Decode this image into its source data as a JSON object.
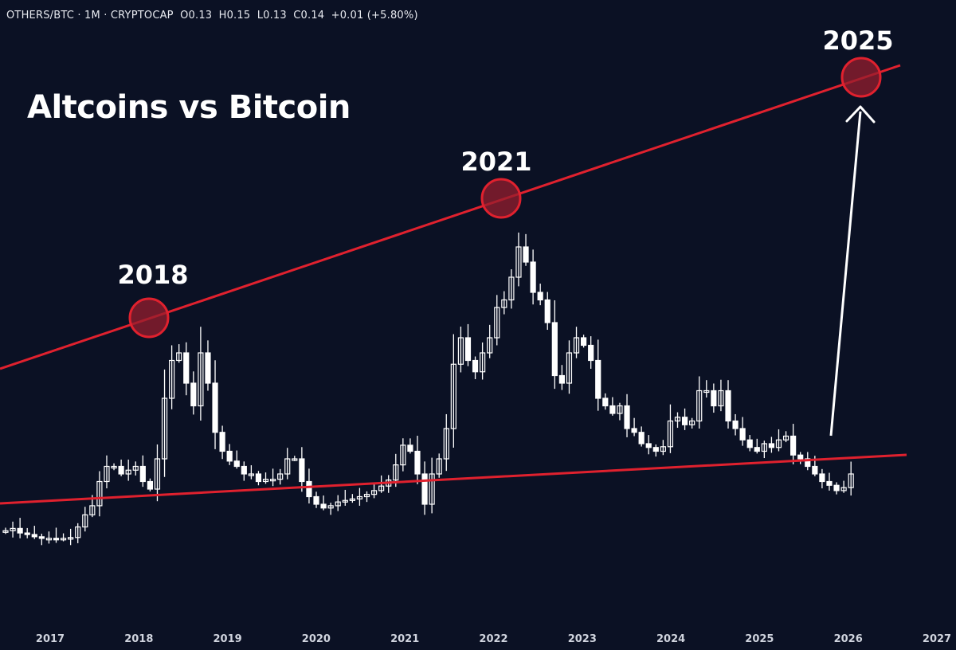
{
  "header": {
    "symbol": "OTHERS/BTC · 1M · CRYPTOCAP",
    "open": "O0.13",
    "high": "H0.15",
    "low": "L0.13",
    "close": "C0.14",
    "change": "+0.01 (+5.80%)"
  },
  "colors": {
    "background": "#0b1124",
    "candle": "#ffffff",
    "trendline": "#e0212e",
    "circle_fill": "#8f1f2e",
    "arrow": "#ffffff"
  },
  "chart_data": {
    "type": "candlestick",
    "title": "Altcoins vs Bitcoin",
    "x_ticks": [
      "2017",
      "2018",
      "2019",
      "2020",
      "2021",
      "2022",
      "2023",
      "2024",
      "2025",
      "2026",
      "2027"
    ],
    "annotations": [
      "2018",
      "2021",
      "2025"
    ],
    "y_axis_visible": false,
    "grid": false,
    "close_values": [
      0.065,
      0.068,
      0.062,
      0.06,
      0.057,
      0.055,
      0.055,
      0.054,
      0.055,
      0.056,
      0.07,
      0.086,
      0.098,
      0.13,
      0.15,
      0.15,
      0.14,
      0.145,
      0.15,
      0.13,
      0.12,
      0.16,
      0.24,
      0.29,
      0.3,
      0.26,
      0.23,
      0.3,
      0.26,
      0.195,
      0.17,
      0.157,
      0.15,
      0.14,
      0.14,
      0.13,
      0.133,
      0.133,
      0.14,
      0.16,
      0.16,
      0.13,
      0.11,
      0.1,
      0.095,
      0.098,
      0.103,
      0.105,
      0.107,
      0.11,
      0.113,
      0.118,
      0.124,
      0.132,
      0.152,
      0.178,
      0.17,
      0.14,
      0.1,
      0.14,
      0.16,
      0.2,
      0.285,
      0.32,
      0.29,
      0.275,
      0.3,
      0.32,
      0.36,
      0.37,
      0.4,
      0.44,
      0.42,
      0.38,
      0.37,
      0.34,
      0.27,
      0.26,
      0.3,
      0.32,
      0.31,
      0.29,
      0.24,
      0.23,
      0.22,
      0.23,
      0.2,
      0.195,
      0.18,
      0.175,
      0.17,
      0.176,
      0.21,
      0.215,
      0.205,
      0.21,
      0.25,
      0.25,
      0.23,
      0.25,
      0.21,
      0.2,
      0.185,
      0.175,
      0.17,
      0.18,
      0.175,
      0.185,
      0.19,
      0.165,
      0.16,
      0.15,
      0.14,
      0.13,
      0.125,
      0.118,
      0.122,
      0.14
    ]
  }
}
